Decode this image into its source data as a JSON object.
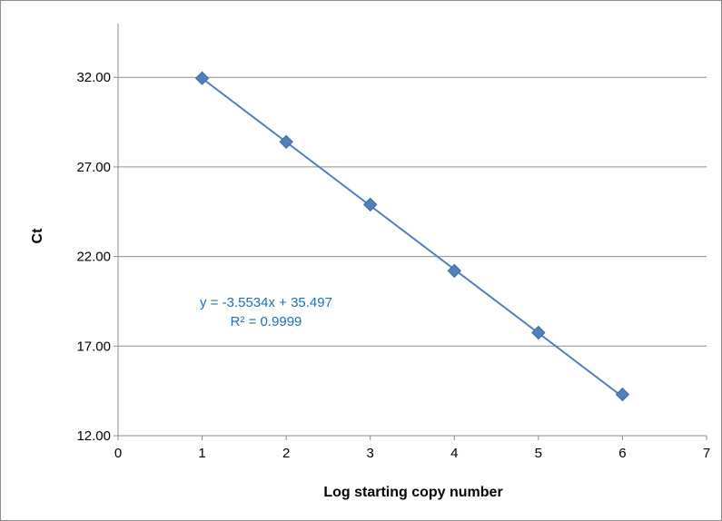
{
  "chart_data": {
    "type": "scatter",
    "title": "",
    "xlabel": "Log starting copy number",
    "ylabel": "Ct",
    "xlim": [
      0,
      7
    ],
    "ylim": [
      12,
      35
    ],
    "x_ticks": [
      "0",
      "1",
      "2",
      "3",
      "4",
      "5",
      "6",
      "7"
    ],
    "y_ticks": [
      "12.00",
      "17.00",
      "22.00",
      "27.00",
      "32.00"
    ],
    "series": [
      {
        "x": [
          1,
          2,
          3,
          4,
          5,
          6
        ],
        "y": [
          31.95,
          28.4,
          24.9,
          21.2,
          17.75,
          14.3
        ],
        "marker": "diamond",
        "color": "#4f81bd"
      }
    ],
    "trendline": {
      "type": "linear",
      "slope": -3.5534,
      "intercept": 35.497,
      "color": "#4f81bd",
      "equation_label": "y = -3.5534x + 35.497",
      "r2_label": "R² = 0.9999",
      "label_color": "#1f6fb4"
    },
    "grid": "horizontal",
    "legend": "none"
  }
}
